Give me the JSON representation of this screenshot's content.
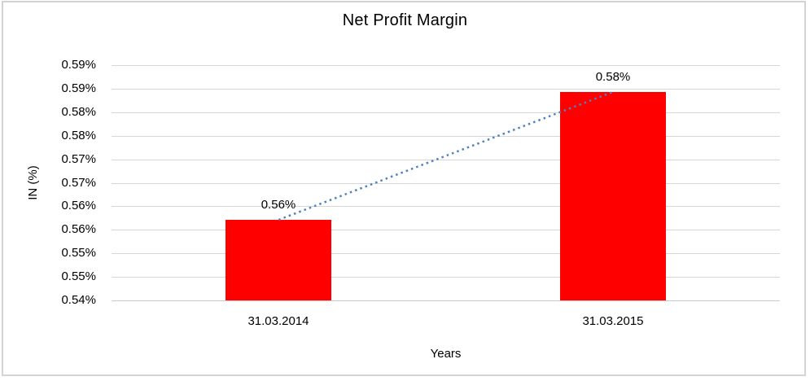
{
  "window": {
    "background": "#ffffff",
    "frame_border_color": "#d3d3d3"
  },
  "chart_data": {
    "type": "bar",
    "title": "Net Profit Margin",
    "xlabel": "Years",
    "ylabel": "IN (%)",
    "categories": [
      "31.03.2014",
      "31.03.2015"
    ],
    "series": [
      {
        "name": "Net Profit Margin",
        "values": [
          0.5571,
          0.5843
        ]
      }
    ],
    "data_labels": [
      "0.56%",
      "0.58%"
    ],
    "ylim": [
      0.54,
      0.59
    ],
    "y_tick_step": 0.005,
    "y_tick_labels_top_to_bottom": [
      "0.59%",
      "0.59%",
      "0.58%",
      "0.58%",
      "0.57%",
      "0.57%",
      "0.56%",
      "0.56%",
      "0.55%",
      "0.55%",
      "0.54%"
    ],
    "grid": true,
    "legend": "none",
    "bar_color": "#ff0000",
    "gridline_color": "#d6d6d6",
    "text_color": "#000000",
    "trendline": {
      "type": "linear",
      "style": "dotted",
      "color": "#4f81bd"
    }
  }
}
